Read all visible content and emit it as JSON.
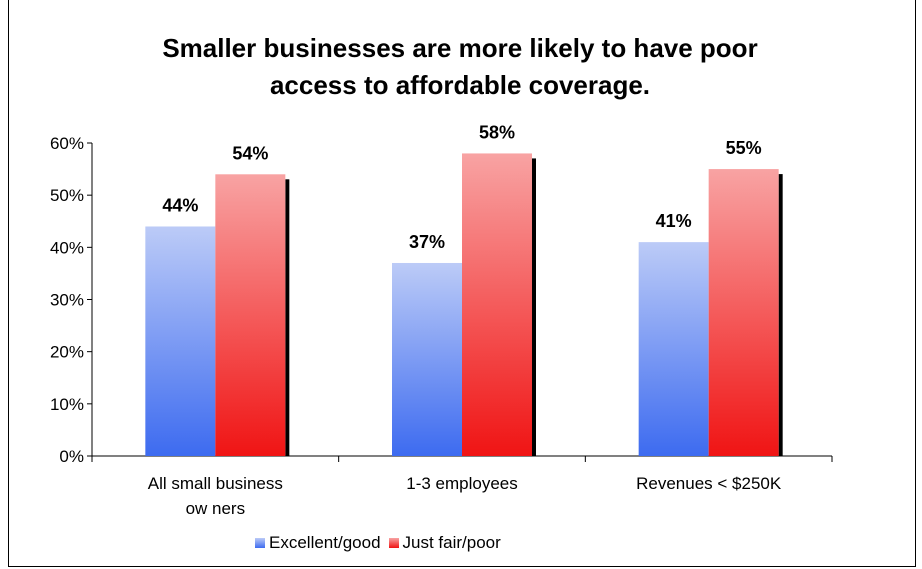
{
  "chart_data": {
    "type": "bar",
    "title": "Smaller businesses are more likely to have poor\naccess to affordable coverage.",
    "categories": [
      [
        "All small business",
        "ow ners"
      ],
      [
        "1-3 employees"
      ],
      [
        "Revenues < $250K"
      ]
    ],
    "series": [
      {
        "name": "Excellent/good",
        "values": [
          44,
          37,
          41
        ],
        "labels": [
          "44%",
          "37%",
          "41%"
        ],
        "color": "#6F8FF0"
      },
      {
        "name": "Just fair/poor",
        "values": [
          54,
          58,
          55
        ],
        "labels": [
          "54%",
          "58%",
          "55%"
        ],
        "color": "#F46A6A"
      }
    ],
    "yticks": [
      "0%",
      "10%",
      "20%",
      "30%",
      "40%",
      "50%",
      "60%"
    ],
    "ylim": [
      0,
      60
    ],
    "grid": false,
    "legend_position": "bottom"
  }
}
